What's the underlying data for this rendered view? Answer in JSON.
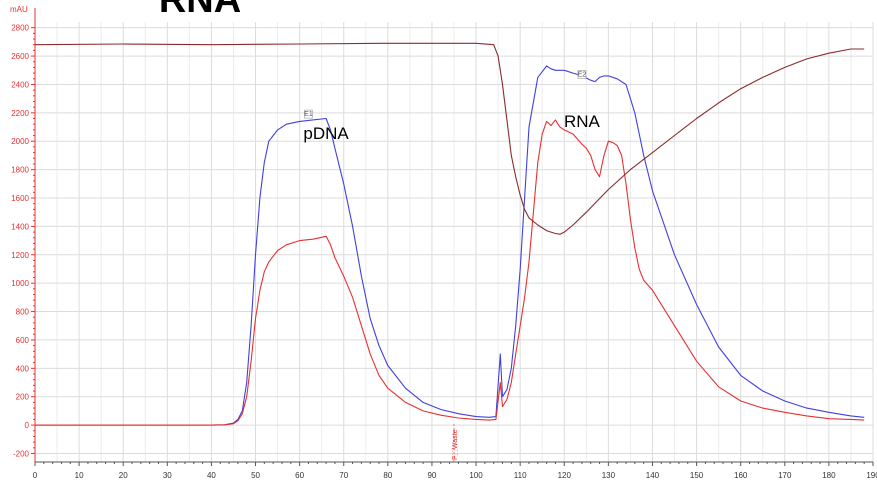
{
  "chart_data": {
    "type": "line",
    "title": "RNA",
    "ylabel": "mAU",
    "xlabel": "",
    "xlim": [
      0,
      190
    ],
    "ylim": [
      -260,
      2840
    ],
    "x_ticks": [
      0,
      10,
      20,
      30,
      40,
      50,
      60,
      70,
      80,
      90,
      100,
      110,
      120,
      130,
      140,
      150,
      160,
      170,
      180,
      190
    ],
    "y_ticks": [
      -200,
      0,
      200,
      400,
      600,
      800,
      1000,
      1200,
      1400,
      1600,
      1800,
      2000,
      2200,
      2400,
      2600,
      2800
    ],
    "grid": true,
    "legend": "none",
    "series": [
      {
        "color": "#4040e0",
        "x": [
          0,
          40,
          43,
          45,
          46,
          47,
          48,
          49,
          50,
          51,
          52,
          53,
          55,
          57,
          60,
          63,
          66,
          67,
          68,
          70,
          72,
          74,
          76,
          78,
          80,
          84,
          88,
          92,
          96,
          100,
          103,
          104.5,
          105.5,
          106,
          107,
          108,
          109,
          110,
          111,
          112,
          114,
          116,
          117,
          118,
          120,
          122,
          124,
          126,
          127,
          128,
          129,
          130,
          132,
          134,
          136,
          138,
          140,
          145,
          150,
          155,
          160,
          165,
          170,
          175,
          180,
          185,
          188
        ],
        "values": [
          0,
          0,
          2,
          15,
          40,
          100,
          300,
          700,
          1200,
          1600,
          1850,
          2000,
          2080,
          2120,
          2140,
          2150,
          2160,
          2080,
          1950,
          1700,
          1400,
          1050,
          750,
          560,
          420,
          260,
          160,
          110,
          80,
          60,
          55,
          60,
          500,
          200,
          250,
          400,
          700,
          1100,
          1600,
          2100,
          2450,
          2530,
          2510,
          2500,
          2500,
          2480,
          2460,
          2430,
          2420,
          2450,
          2460,
          2460,
          2440,
          2400,
          2200,
          1900,
          1650,
          1200,
          850,
          550,
          350,
          240,
          170,
          120,
          90,
          65,
          55
        ]
      },
      {
        "color": "#e83030",
        "x": [
          0,
          40,
          43,
          45,
          46,
          47,
          48,
          49,
          50,
          51,
          52,
          53,
          55,
          57,
          60,
          63,
          66,
          67,
          68,
          70,
          72,
          74,
          76,
          78,
          80,
          84,
          88,
          92,
          96,
          100,
          103,
          104.5,
          105.5,
          106,
          107,
          108,
          109,
          110,
          111,
          112,
          113,
          114,
          115,
          116,
          117,
          118,
          119,
          120,
          122,
          124,
          125,
          126,
          127,
          128,
          129,
          130,
          131,
          132,
          133,
          134,
          135,
          136,
          137,
          138,
          140,
          145,
          150,
          155,
          160,
          165,
          170,
          175,
          180,
          185,
          188
        ],
        "values": [
          0,
          0,
          2,
          10,
          30,
          80,
          200,
          450,
          750,
          950,
          1080,
          1150,
          1230,
          1270,
          1300,
          1310,
          1330,
          1270,
          1180,
          1050,
          900,
          700,
          500,
          350,
          260,
          160,
          100,
          70,
          50,
          40,
          35,
          40,
          300,
          130,
          180,
          300,
          500,
          700,
          900,
          1150,
          1500,
          1850,
          2050,
          2140,
          2110,
          2150,
          2100,
          2080,
          2050,
          1980,
          1950,
          1900,
          1800,
          1750,
          1900,
          2000,
          1990,
          1970,
          1900,
          1700,
          1450,
          1250,
          1100,
          1020,
          950,
          700,
          450,
          270,
          170,
          120,
          90,
          65,
          45,
          40,
          35
        ]
      },
      {
        "color": "#8b2b2b",
        "x": [
          0,
          20,
          40,
          60,
          80,
          100,
          104,
          105,
          106,
          107,
          108,
          109,
          110,
          111,
          112,
          114,
          116,
          117,
          118,
          119,
          120,
          122,
          125,
          130,
          135,
          140,
          145,
          150,
          155,
          160,
          165,
          170,
          175,
          180,
          185,
          188
        ],
        "values": [
          2680,
          2685,
          2680,
          2685,
          2690,
          2690,
          2680,
          2600,
          2400,
          2150,
          1900,
          1750,
          1620,
          1520,
          1460,
          1410,
          1370,
          1360,
          1350,
          1345,
          1360,
          1410,
          1500,
          1660,
          1800,
          1920,
          2040,
          2160,
          2270,
          2370,
          2450,
          2520,
          2580,
          2620,
          2650,
          2650
        ]
      }
    ],
    "annotations": [
      {
        "text": "RNA",
        "x": 124,
        "y": 2100
      },
      {
        "text": "pDNA",
        "x": 66,
        "y": 1700
      },
      {
        "text": "F⬚Waste",
        "x": 95,
        "y": -300
      }
    ],
    "fraction_markers": [
      {
        "text": "E1",
        "x": 62,
        "y": 2170
      },
      {
        "text": "E2",
        "x": 124,
        "y": 2450
      }
    ]
  },
  "colors": {
    "axis": "#e83030",
    "grid": "#dcdcdc",
    "x_tick_text": "#333333"
  }
}
